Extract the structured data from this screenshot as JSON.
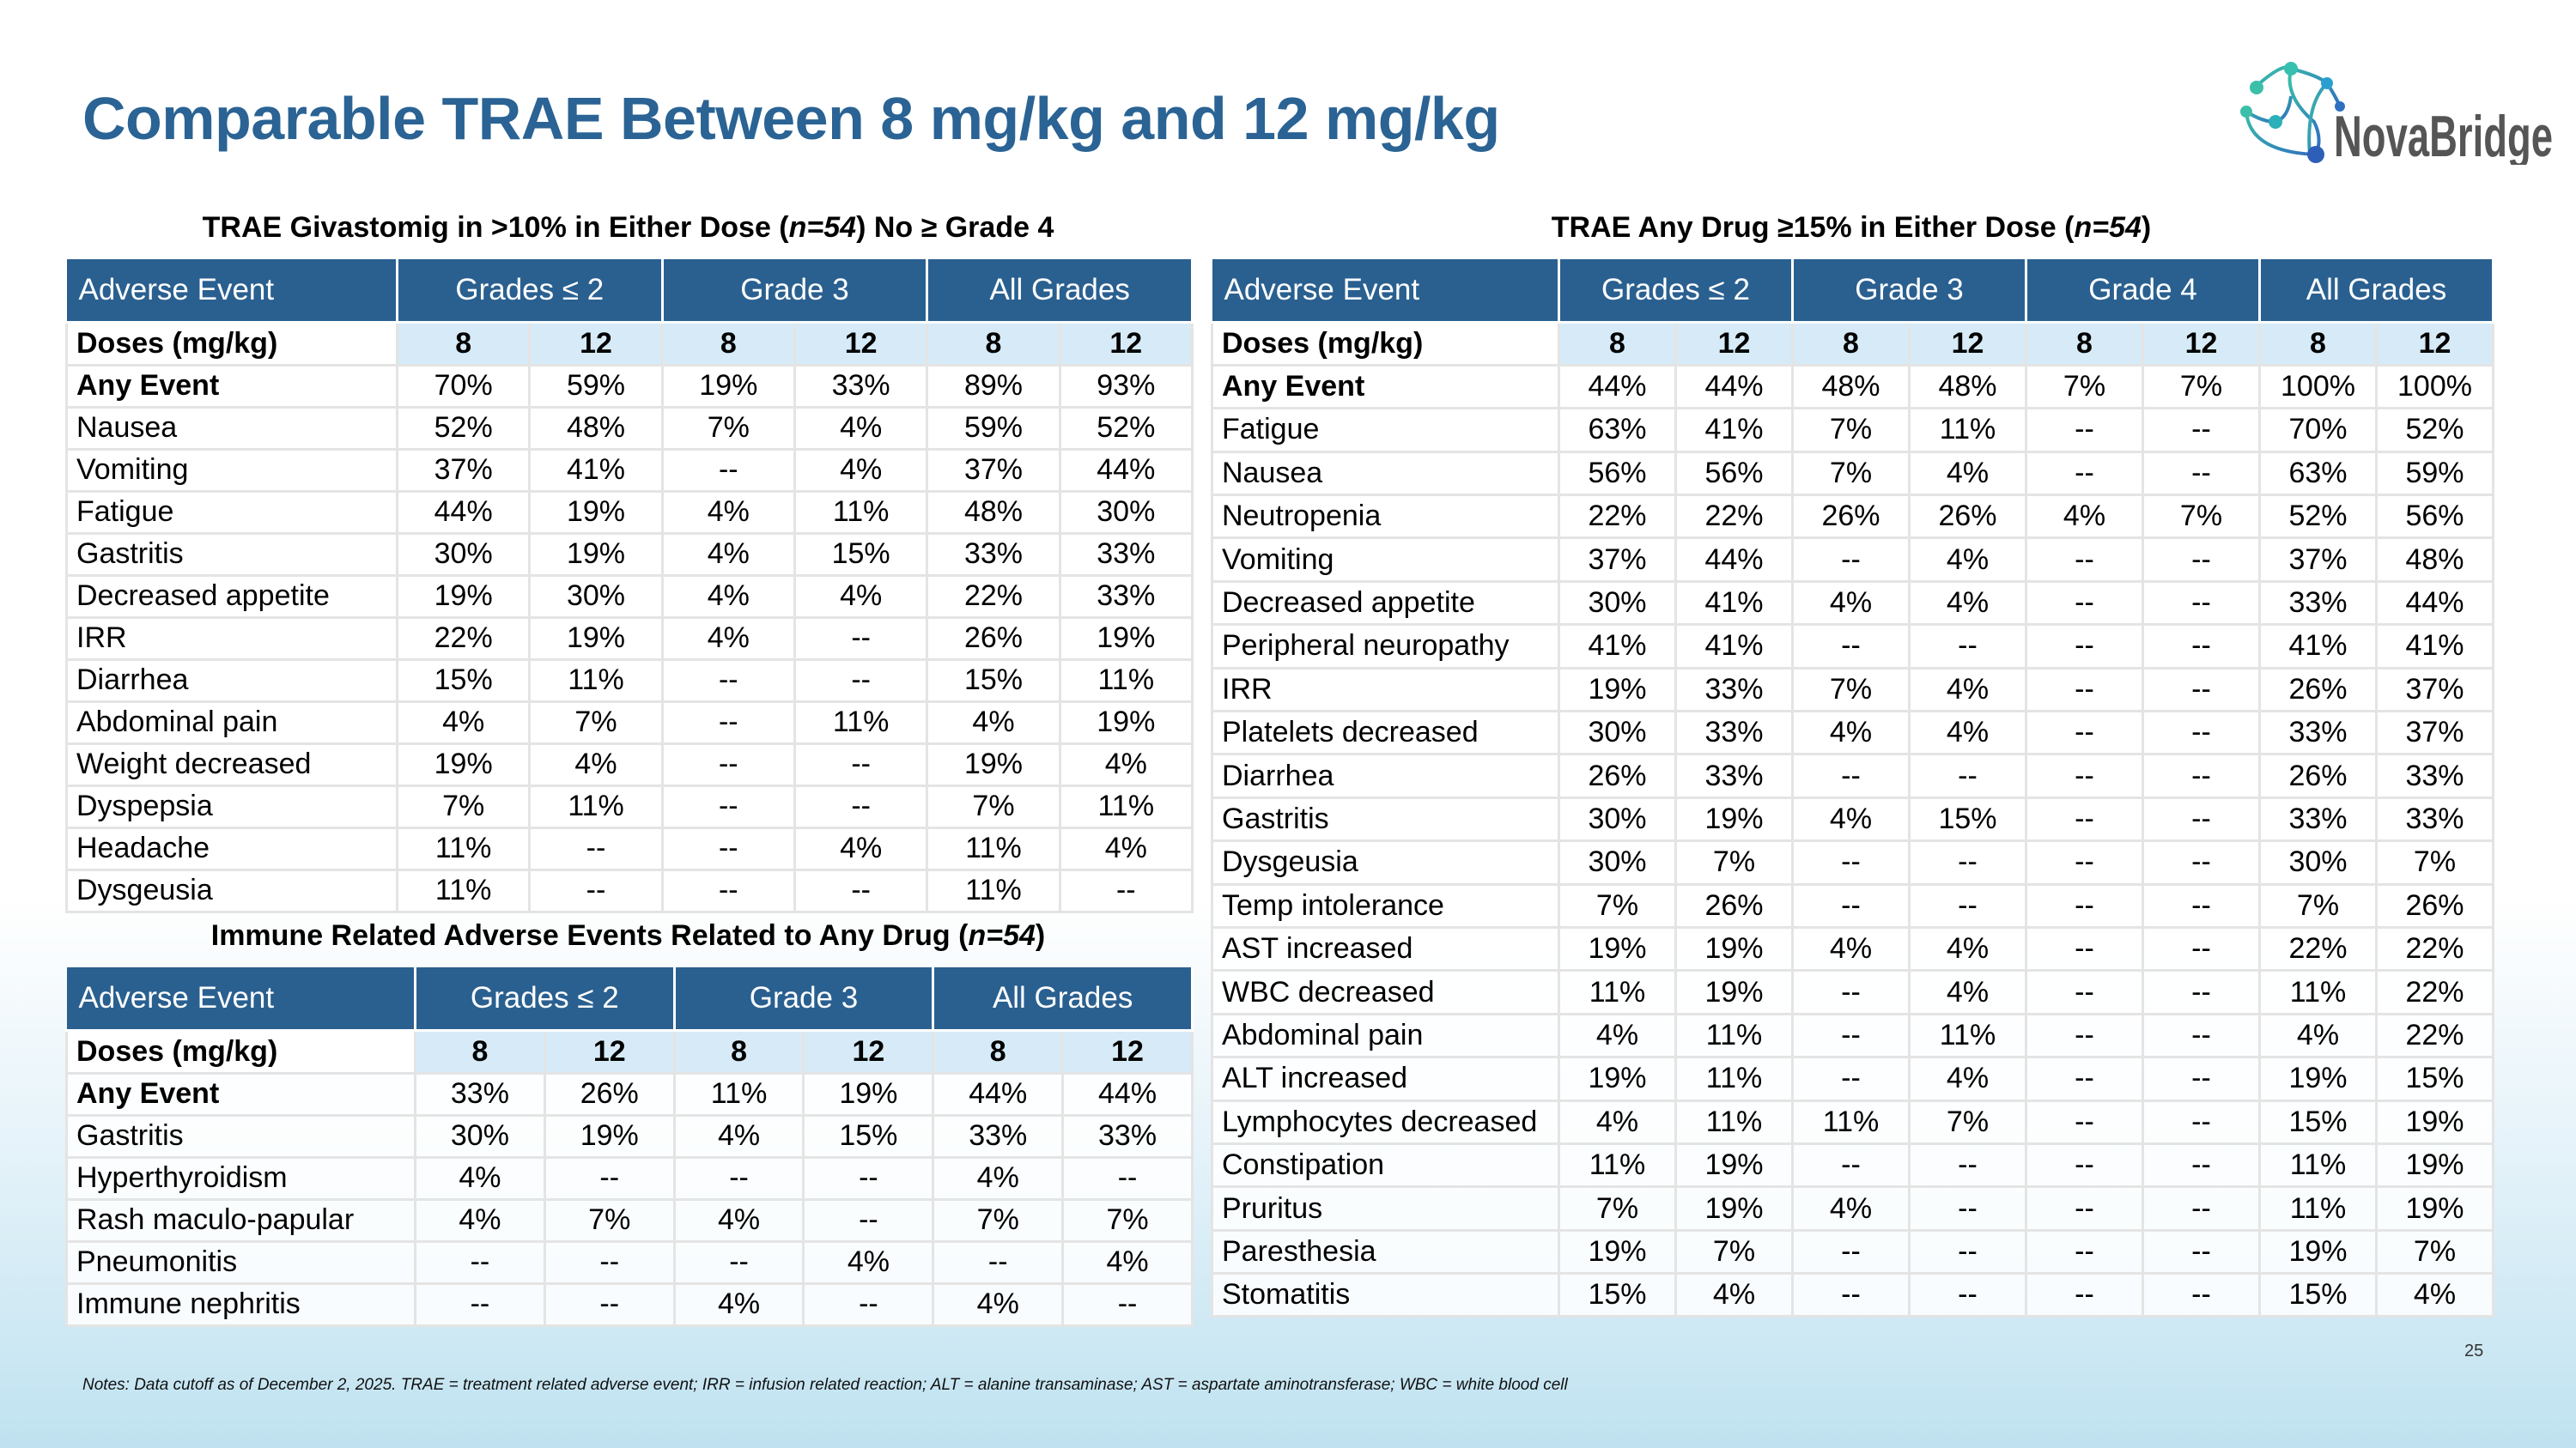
{
  "title": "Comparable TRAE Between 8 mg/kg and 12 mg/kg",
  "logo": {
    "text": "NovaBridge",
    "colors": [
      "#3bbfa8",
      "#2e7fc7"
    ]
  },
  "colors": {
    "header": "#2a6090",
    "dose_row": "#d6ebf7",
    "title": "#2a6394"
  },
  "left_table": {
    "subtitle_pre": "TRAE Givastomig in >10% in Either Dose (",
    "subtitle_n": "n=54",
    "subtitle_post": ") No ≥ Grade 4",
    "headers": [
      "Adverse Event",
      "Grades ≤ 2",
      "Grade 3",
      "All Grades"
    ],
    "dose_label": "Doses (mg/kg)",
    "doses": [
      "8",
      "12",
      "8",
      "12",
      "8",
      "12"
    ],
    "rows": [
      [
        "Any Event",
        "70%",
        "59%",
        "19%",
        "33%",
        "89%",
        "93%"
      ],
      [
        "Nausea",
        "52%",
        "48%",
        "7%",
        "4%",
        "59%",
        "52%"
      ],
      [
        "Vomiting",
        "37%",
        "41%",
        "--",
        "4%",
        "37%",
        "44%"
      ],
      [
        "Fatigue",
        "44%",
        "19%",
        "4%",
        "11%",
        "48%",
        "30%"
      ],
      [
        "Gastritis",
        "30%",
        "19%",
        "4%",
        "15%",
        "33%",
        "33%"
      ],
      [
        "Decreased appetite",
        "19%",
        "30%",
        "4%",
        "4%",
        "22%",
        "33%"
      ],
      [
        "IRR",
        "22%",
        "19%",
        "4%",
        "--",
        "26%",
        "19%"
      ],
      [
        "Diarrhea",
        "15%",
        "11%",
        "--",
        "--",
        "15%",
        "11%"
      ],
      [
        "Abdominal pain",
        "4%",
        "7%",
        "--",
        "11%",
        "4%",
        "19%"
      ],
      [
        "Weight decreased",
        "19%",
        "4%",
        "--",
        "--",
        "19%",
        "4%"
      ],
      [
        "Dyspepsia",
        "7%",
        "11%",
        "--",
        "--",
        "7%",
        "11%"
      ],
      [
        "Headache",
        "11%",
        "--",
        "--",
        "4%",
        "11%",
        "4%"
      ],
      [
        "Dysgeusia",
        "11%",
        "--",
        "--",
        "--",
        "11%",
        "--"
      ]
    ]
  },
  "immune_table": {
    "subtitle_pre": "Immune Related Adverse Events Related to Any Drug (",
    "subtitle_n": "n=54",
    "subtitle_post": ")",
    "headers": [
      "Adverse Event",
      "Grades ≤ 2",
      "Grade 3",
      "All Grades"
    ],
    "dose_label": "Doses (mg/kg)",
    "doses": [
      "8",
      "12",
      "8",
      "12",
      "8",
      "12"
    ],
    "rows": [
      [
        "Any Event",
        "33%",
        "26%",
        "11%",
        "19%",
        "44%",
        "44%"
      ],
      [
        "Gastritis",
        "30%",
        "19%",
        "4%",
        "15%",
        "33%",
        "33%"
      ],
      [
        "Hyperthyroidism",
        "4%",
        "--",
        "--",
        "--",
        "4%",
        "--"
      ],
      [
        "Rash maculo-papular",
        "4%",
        "7%",
        "4%",
        "--",
        "7%",
        "7%"
      ],
      [
        "Pneumonitis",
        "--",
        "--",
        "--",
        "4%",
        "--",
        "4%"
      ],
      [
        "Immune nephritis",
        "--",
        "--",
        "4%",
        "--",
        "4%",
        "--"
      ]
    ]
  },
  "right_table": {
    "subtitle_pre": "TRAE Any Drug ≥15% in Either Dose (",
    "subtitle_n": "n=54",
    "subtitle_post": ")",
    "headers": [
      "Adverse Event",
      "Grades ≤ 2",
      "Grade 3",
      "Grade 4",
      "All Grades"
    ],
    "dose_label": "Doses (mg/kg)",
    "doses": [
      "8",
      "12",
      "8",
      "12",
      "8",
      "12",
      "8",
      "12"
    ],
    "rows": [
      [
        "Any Event",
        "44%",
        "44%",
        "48%",
        "48%",
        "7%",
        "7%",
        "100%",
        "100%"
      ],
      [
        "Fatigue",
        "63%",
        "41%",
        "7%",
        "11%",
        "--",
        "--",
        "70%",
        "52%"
      ],
      [
        "Nausea",
        "56%",
        "56%",
        "7%",
        "4%",
        "--",
        "--",
        "63%",
        "59%"
      ],
      [
        "Neutropenia",
        "22%",
        "22%",
        "26%",
        "26%",
        "4%",
        "7%",
        "52%",
        "56%"
      ],
      [
        "Vomiting",
        "37%",
        "44%",
        "--",
        "4%",
        "--",
        "--",
        "37%",
        "48%"
      ],
      [
        "Decreased appetite",
        "30%",
        "41%",
        "4%",
        "4%",
        "--",
        "--",
        "33%",
        "44%"
      ],
      [
        "Peripheral neuropathy",
        "41%",
        "41%",
        "--",
        "--",
        "--",
        "--",
        "41%",
        "41%"
      ],
      [
        "IRR",
        "19%",
        "33%",
        "7%",
        "4%",
        "--",
        "--",
        "26%",
        "37%"
      ],
      [
        "Platelets decreased",
        "30%",
        "33%",
        "4%",
        "4%",
        "--",
        "--",
        "33%",
        "37%"
      ],
      [
        "Diarrhea",
        "26%",
        "33%",
        "--",
        "--",
        "--",
        "--",
        "26%",
        "33%"
      ],
      [
        "Gastritis",
        "30%",
        "19%",
        "4%",
        "15%",
        "--",
        "--",
        "33%",
        "33%"
      ],
      [
        "Dysgeusia",
        "30%",
        "7%",
        "--",
        "--",
        "--",
        "--",
        "30%",
        "7%"
      ],
      [
        "Temp intolerance",
        "7%",
        "26%",
        "--",
        "--",
        "--",
        "--",
        "7%",
        "26%"
      ],
      [
        "AST increased",
        "19%",
        "19%",
        "4%",
        "4%",
        "--",
        "--",
        "22%",
        "22%"
      ],
      [
        "WBC decreased",
        "11%",
        "19%",
        "--",
        "4%",
        "--",
        "--",
        "11%",
        "22%"
      ],
      [
        "Abdominal pain",
        "4%",
        "11%",
        "--",
        "11%",
        "--",
        "--",
        "4%",
        "22%"
      ],
      [
        "ALT increased",
        "19%",
        "11%",
        "--",
        "4%",
        "--",
        "--",
        "19%",
        "15%"
      ],
      [
        "Lymphocytes decreased",
        "4%",
        "11%",
        "11%",
        "7%",
        "--",
        "--",
        "15%",
        "19%"
      ],
      [
        "Constipation",
        "11%",
        "19%",
        "--",
        "--",
        "--",
        "--",
        "11%",
        "19%"
      ],
      [
        "Pruritus",
        "7%",
        "19%",
        "4%",
        "--",
        "--",
        "--",
        "11%",
        "19%"
      ],
      [
        "Paresthesia",
        "19%",
        "7%",
        "--",
        "--",
        "--",
        "--",
        "19%",
        "7%"
      ],
      [
        "Stomatitis",
        "15%",
        "4%",
        "--",
        "--",
        "--",
        "--",
        "15%",
        "4%"
      ]
    ]
  },
  "page_number": "25",
  "notes": "Notes: Data cutoff as of December 2, 2025. TRAE = treatment related adverse event; IRR = infusion related reaction; ALT = alanine transaminase; AST = aspartate aminotransferase; WBC = white blood cell"
}
